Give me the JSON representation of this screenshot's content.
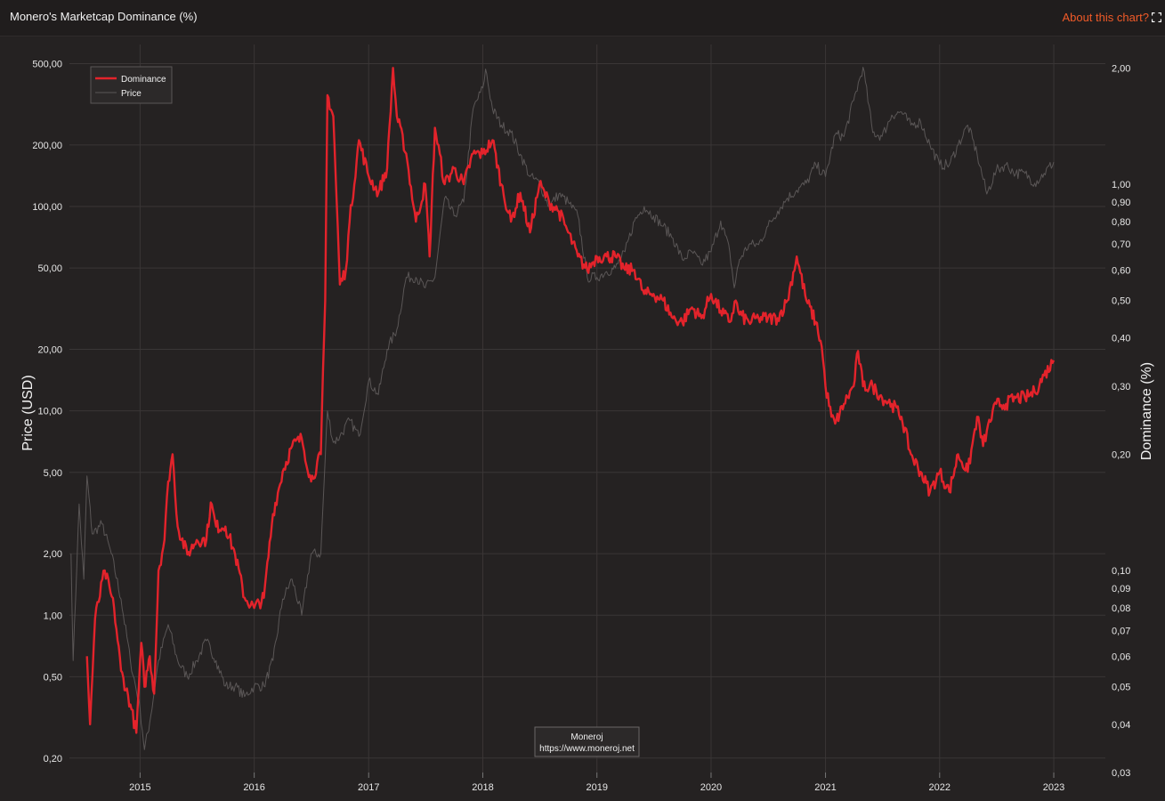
{
  "header": {
    "title": "Monero's Marketcap Dominance (%)",
    "about_label": "About this chart?"
  },
  "colors": {
    "background": "#252222",
    "dominance": "#e3232b",
    "price": "#5a5656",
    "accent": "#f05a28"
  },
  "icons": {
    "expand": "expand-icon"
  },
  "credit": {
    "line1": "Moneroj",
    "line2": "https://www.moneroj.net"
  },
  "chart_data": {
    "type": "line",
    "title": "Monero's Marketcap Dominance (%)",
    "ylabel": "Price (USD)",
    "y2label": "Dominance (%)",
    "yscale": "log",
    "y2scale": "log",
    "ylim": [
      0.17,
      620
    ],
    "y2lim": [
      0.03,
      2.3
    ],
    "x_ticks": [
      "2015",
      "2016",
      "2017",
      "2018",
      "2019",
      "2020",
      "2021",
      "2022",
      "2023"
    ],
    "y_ticks": [
      {
        "value": 0.2,
        "label": "0,20"
      },
      {
        "value": 0.5,
        "label": "0,50"
      },
      {
        "value": 1,
        "label": "1,00"
      },
      {
        "value": 2,
        "label": "2,00"
      },
      {
        "value": 5,
        "label": "5,00"
      },
      {
        "value": 10,
        "label": "10,00"
      },
      {
        "value": 20,
        "label": "20,00"
      },
      {
        "value": 50,
        "label": "50,00"
      },
      {
        "value": 100,
        "label": "100,00"
      },
      {
        "value": 200,
        "label": "200,00"
      },
      {
        "value": 500,
        "label": "500,00"
      }
    ],
    "y2_ticks": [
      {
        "value": 0.03,
        "label": "0,03"
      },
      {
        "value": 0.04,
        "label": "0,04"
      },
      {
        "value": 0.05,
        "label": "0,05"
      },
      {
        "value": 0.06,
        "label": "0,06"
      },
      {
        "value": 0.07,
        "label": "0,07"
      },
      {
        "value": 0.08,
        "label": "0,08"
      },
      {
        "value": 0.09,
        "label": "0,09"
      },
      {
        "value": 0.1,
        "label": "0,10"
      },
      {
        "value": 0.2,
        "label": "0,20"
      },
      {
        "value": 0.3,
        "label": "0,30"
      },
      {
        "value": 0.4,
        "label": "0,40"
      },
      {
        "value": 0.5,
        "label": "0,50"
      },
      {
        "value": 0.6,
        "label": "0,60"
      },
      {
        "value": 0.7,
        "label": "0,70"
      },
      {
        "value": 0.8,
        "label": "0,80"
      },
      {
        "value": 0.9,
        "label": "0,90"
      },
      {
        "value": 1.0,
        "label": "1,00"
      },
      {
        "value": 2.0,
        "label": "2,00"
      }
    ],
    "grid": true,
    "legend": "top-left",
    "series": [
      {
        "name": "Dominance",
        "axis": "right",
        "x": [
          "2014-07-15",
          "2014-07-25",
          "2014-08-10",
          "2014-09-10",
          "2014-10-10",
          "2014-11-01",
          "2014-12-01",
          "2014-12-20",
          "2015-01-05",
          "2015-01-15",
          "2015-02-01",
          "2015-02-15",
          "2015-03-01",
          "2015-03-20",
          "2015-04-01",
          "2015-04-15",
          "2015-05-01",
          "2015-06-01",
          "2015-07-01",
          "2015-08-01",
          "2015-08-15",
          "2015-09-01",
          "2015-10-01",
          "2015-11-01",
          "2015-12-01",
          "2016-01-01",
          "2016-02-01",
          "2016-03-01",
          "2016-04-01",
          "2016-05-01",
          "2016-06-01",
          "2016-07-01",
          "2016-08-01",
          "2016-08-15",
          "2016-08-22",
          "2016-09-10",
          "2016-10-01",
          "2016-10-20",
          "2016-11-01",
          "2016-12-01",
          "2017-01-01",
          "2017-02-01",
          "2017-03-01",
          "2017-03-20",
          "2017-04-01",
          "2017-05-01",
          "2017-06-01",
          "2017-07-01",
          "2017-07-15",
          "2017-08-01",
          "2017-09-01",
          "2017-10-01",
          "2017-11-01",
          "2017-12-01",
          "2018-01-01",
          "2018-02-01",
          "2018-03-01",
          "2018-04-01",
          "2018-05-01",
          "2018-06-01",
          "2018-07-01",
          "2018-08-01",
          "2018-09-01",
          "2018-10-01",
          "2018-11-01",
          "2018-12-01",
          "2019-01-01",
          "2019-02-01",
          "2019-03-01",
          "2019-04-01",
          "2019-05-01",
          "2019-06-01",
          "2019-07-01",
          "2019-08-01",
          "2019-09-01",
          "2019-10-01",
          "2019-11-01",
          "2019-12-01",
          "2020-01-01",
          "2020-02-01",
          "2020-03-01",
          "2020-03-20",
          "2020-04-01",
          "2020-05-01",
          "2020-06-01",
          "2020-07-01",
          "2020-08-01",
          "2020-09-01",
          "2020-10-01",
          "2020-11-01",
          "2020-12-01",
          "2020-12-20",
          "2021-01-01",
          "2021-01-20",
          "2021-02-01",
          "2021-03-01",
          "2021-04-01",
          "2021-04-15",
          "2021-05-01",
          "2021-06-01",
          "2021-07-01",
          "2021-08-01",
          "2021-09-01",
          "2021-10-01",
          "2021-11-01",
          "2021-12-01",
          "2022-01-01",
          "2022-02-01",
          "2022-03-01",
          "2022-04-01",
          "2022-05-01",
          "2022-05-20",
          "2022-06-01",
          "2022-07-01",
          "2022-08-01",
          "2022-09-01",
          "2022-10-01",
          "2022-11-01",
          "2022-12-01",
          "2023-01-01"
        ],
        "values": [
          0.06,
          0.04,
          0.075,
          0.1,
          0.08,
          0.055,
          0.045,
          0.038,
          0.065,
          0.05,
          0.06,
          0.048,
          0.1,
          0.12,
          0.17,
          0.2,
          0.13,
          0.11,
          0.12,
          0.12,
          0.15,
          0.13,
          0.13,
          0.11,
          0.085,
          0.08,
          0.085,
          0.14,
          0.18,
          0.21,
          0.22,
          0.17,
          0.2,
          0.5,
          1.7,
          1.5,
          0.55,
          0.6,
          0.8,
          1.3,
          1.05,
          0.95,
          1.1,
          2.0,
          1.5,
          1.2,
          0.8,
          1.0,
          0.65,
          1.4,
          1.0,
          1.1,
          1.0,
          1.2,
          1.2,
          1.3,
          1.0,
          0.8,
          0.95,
          0.75,
          1.0,
          0.9,
          0.85,
          0.75,
          0.65,
          0.6,
          0.65,
          0.65,
          0.65,
          0.6,
          0.6,
          0.52,
          0.52,
          0.5,
          0.45,
          0.44,
          0.48,
          0.45,
          0.52,
          0.47,
          0.44,
          0.5,
          0.46,
          0.44,
          0.45,
          0.45,
          0.45,
          0.5,
          0.65,
          0.5,
          0.44,
          0.38,
          0.3,
          0.25,
          0.24,
          0.27,
          0.3,
          0.37,
          0.3,
          0.3,
          0.28,
          0.27,
          0.25,
          0.2,
          0.18,
          0.16,
          0.18,
          0.16,
          0.2,
          0.18,
          0.25,
          0.21,
          0.23,
          0.27,
          0.27,
          0.28,
          0.28,
          0.29,
          0.32,
          0.35
        ]
      },
      {
        "name": "Price",
        "axis": "left",
        "x": [
          "2014-05-25",
          "2014-06-01",
          "2014-06-20",
          "2014-07-05",
          "2014-07-15",
          "2014-08-01",
          "2014-09-01",
          "2014-10-01",
          "2014-11-01",
          "2014-12-01",
          "2015-01-01",
          "2015-01-15",
          "2015-02-01",
          "2015-03-01",
          "2015-04-01",
          "2015-05-01",
          "2015-06-01",
          "2015-07-01",
          "2015-08-01",
          "2015-09-01",
          "2015-10-01",
          "2015-11-01",
          "2015-12-01",
          "2016-01-01",
          "2016-02-01",
          "2016-03-01",
          "2016-04-01",
          "2016-05-01",
          "2016-06-01",
          "2016-07-01",
          "2016-08-01",
          "2016-08-22",
          "2016-09-10",
          "2016-10-01",
          "2016-11-01",
          "2016-12-01",
          "2017-01-01",
          "2017-02-01",
          "2017-03-01",
          "2017-04-01",
          "2017-05-01",
          "2017-06-01",
          "2017-07-01",
          "2017-08-01",
          "2017-09-01",
          "2017-10-01",
          "2017-11-01",
          "2017-12-01",
          "2018-01-01",
          "2018-01-10",
          "2018-02-01",
          "2018-03-01",
          "2018-04-01",
          "2018-05-01",
          "2018-06-01",
          "2018-07-01",
          "2018-08-01",
          "2018-09-01",
          "2018-10-01",
          "2018-11-01",
          "2018-12-01",
          "2019-01-01",
          "2019-02-01",
          "2019-03-01",
          "2019-04-01",
          "2019-05-01",
          "2019-06-01",
          "2019-07-01",
          "2019-08-01",
          "2019-09-01",
          "2019-10-01",
          "2019-11-01",
          "2019-12-01",
          "2020-01-01",
          "2020-02-01",
          "2020-03-01",
          "2020-03-15",
          "2020-04-01",
          "2020-05-01",
          "2020-06-01",
          "2020-07-01",
          "2020-08-01",
          "2020-09-01",
          "2020-10-01",
          "2020-11-01",
          "2020-12-01",
          "2021-01-01",
          "2021-02-01",
          "2021-03-01",
          "2021-04-01",
          "2021-05-01",
          "2021-06-01",
          "2021-07-01",
          "2021-08-01",
          "2021-09-01",
          "2021-10-01",
          "2021-11-01",
          "2021-12-01",
          "2022-01-01",
          "2022-02-01",
          "2022-03-01",
          "2022-04-01",
          "2022-05-01",
          "2022-06-01",
          "2022-07-01",
          "2022-08-01",
          "2022-09-01",
          "2022-10-01",
          "2022-11-01",
          "2022-12-01",
          "2023-01-01"
        ],
        "values": [
          2.0,
          0.6,
          3.5,
          1.5,
          4.8,
          2.5,
          2.8,
          2.0,
          1.2,
          0.6,
          0.35,
          0.22,
          0.3,
          0.6,
          0.9,
          0.6,
          0.5,
          0.6,
          0.75,
          0.6,
          0.45,
          0.45,
          0.4,
          0.45,
          0.45,
          0.6,
          1.2,
          1.5,
          1.0,
          2.0,
          2.0,
          10.0,
          7.0,
          7.5,
          9.0,
          7.5,
          14.0,
          12.0,
          20.0,
          25.0,
          45.0,
          45.0,
          40.0,
          45.0,
          110.0,
          90.0,
          105.0,
          300.0,
          380.0,
          470.0,
          300.0,
          250.0,
          230.0,
          180.0,
          140.0,
          130.0,
          100.0,
          115.0,
          105.0,
          90.0,
          45.0,
          45.0,
          48.0,
          50.0,
          60.0,
          85.0,
          100.0,
          90.0,
          80.0,
          70.0,
          55.0,
          60.0,
          52.0,
          60.0,
          85.0,
          60.0,
          40.0,
          55.0,
          65.0,
          65.0,
          80.0,
          95.0,
          110.0,
          120.0,
          130.0,
          160.0,
          140.0,
          225.0,
          220.0,
          330.0,
          480.0,
          230.0,
          220.0,
          280.0,
          290.0,
          250.0,
          260.0,
          200.0,
          160.0,
          160.0,
          200.0,
          250.0,
          180.0,
          115.0,
          150.0,
          160.0,
          145.0,
          145.0,
          130.0,
          145.0,
          165.0
        ]
      }
    ]
  }
}
